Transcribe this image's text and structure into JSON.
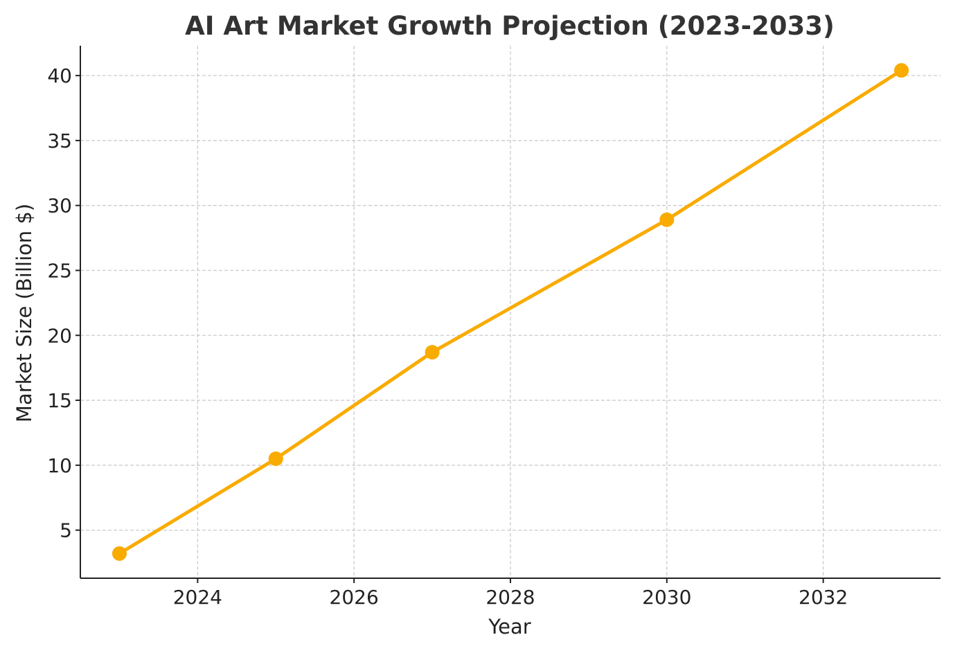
{
  "chart_data": {
    "type": "line",
    "title": "AI Art Market Growth Projection (2023-2033)",
    "xlabel": "Year",
    "ylabel": "Market Size (Billion $)",
    "xlim": [
      2022.5,
      2033.5
    ],
    "ylim": [
      1.3,
      42.3
    ],
    "x_ticks": [
      2024,
      2026,
      2028,
      2030,
      2032
    ],
    "y_ticks": [
      5,
      10,
      15,
      20,
      25,
      30,
      35,
      40
    ],
    "grid": true,
    "series": [
      {
        "color": "#f9ab00",
        "marker": "circle",
        "points": [
          {
            "x": 2023,
            "y": 3.2
          },
          {
            "x": 2025,
            "y": 10.5
          },
          {
            "x": 2027,
            "y": 18.7
          },
          {
            "x": 2030,
            "y": 28.9
          },
          {
            "x": 2033,
            "y": 40.4
          }
        ]
      }
    ]
  }
}
